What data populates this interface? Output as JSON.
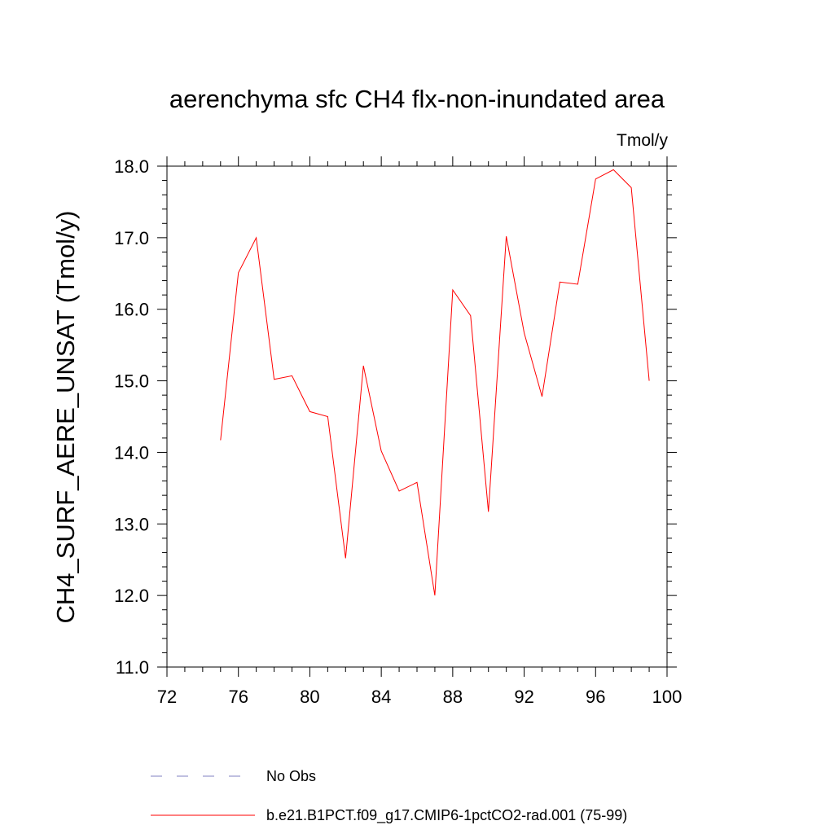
{
  "chart_data": {
    "type": "line",
    "title": "aerenchyma sfc CH4 flx-non-inundated area",
    "units": "Tmol/y",
    "xlabel": "",
    "ylabel": "CH4_SURF_AERE_UNSAT  (Tmol/y)",
    "xlim": [
      72,
      100
    ],
    "ylim": [
      11.0,
      18.0
    ],
    "x_ticks": [
      72,
      76,
      80,
      84,
      88,
      92,
      96,
      100
    ],
    "x_tick_labels": [
      "72",
      "76",
      "80",
      "84",
      "88",
      "92",
      "96",
      "100"
    ],
    "y_ticks": [
      11.0,
      12.0,
      13.0,
      14.0,
      15.0,
      16.0,
      17.0,
      18.0
    ],
    "y_tick_labels": [
      "11.0",
      "12.0",
      "13.0",
      "14.0",
      "15.0",
      "16.0",
      "17.0",
      "18.0"
    ],
    "grid": false,
    "legend_position": "bottom",
    "series": [
      {
        "name": "b.e21.B1PCT.f09_g17.CMIP6-1pctCO2-rad.001 (75-99)",
        "color": "#ff0000",
        "style": "solid",
        "x": [
          75,
          76,
          77,
          78,
          79,
          80,
          81,
          82,
          83,
          84,
          85,
          86,
          87,
          88,
          89,
          90,
          91,
          92,
          93,
          94,
          95,
          96,
          97,
          98,
          99
        ],
        "y": [
          14.17,
          16.51,
          17.0,
          15.02,
          15.07,
          14.57,
          14.5,
          12.52,
          15.21,
          14.02,
          13.46,
          13.58,
          12.0,
          16.27,
          15.91,
          13.17,
          17.02,
          15.67,
          14.78,
          16.38,
          16.35,
          17.82,
          17.95,
          17.7,
          15.0
        ]
      }
    ],
    "legend": [
      {
        "label": "No Obs",
        "color": "#8080c0",
        "style": "dashed"
      },
      {
        "label": "b.e21.B1PCT.f09_g17.CMIP6-1pctCO2-rad.001 (75-99)",
        "color": "#ff0000",
        "style": "solid"
      }
    ]
  }
}
